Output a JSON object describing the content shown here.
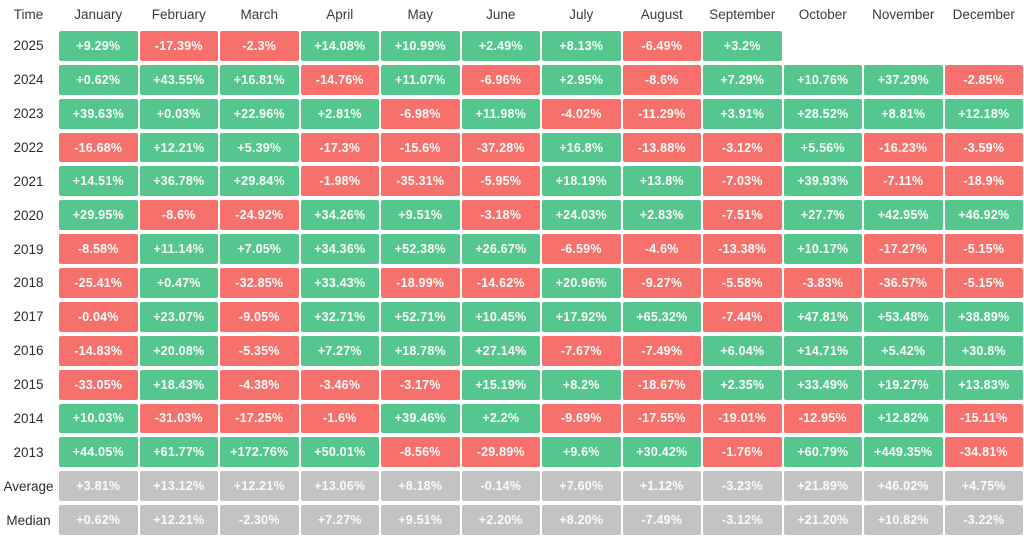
{
  "colors": {
    "positive": "#55c78e",
    "negative": "#f7716c",
    "neutral": "#c3c3c3",
    "cell_text": "#fbfbfb",
    "label_text": "#2d2d2d"
  },
  "chart_data": {
    "type": "heatmap",
    "corner_label": "Time",
    "legend_position": "none",
    "grid": false,
    "columns": [
      "January",
      "February",
      "March",
      "April",
      "May",
      "June",
      "July",
      "August",
      "September",
      "October",
      "November",
      "December"
    ],
    "rows": [
      {
        "label": "2025",
        "kind": "year",
        "values": [
          "+9.29%",
          "-17.39%",
          "-2.3%",
          "+14.08%",
          "+10.99%",
          "+2.49%",
          "+8.13%",
          "-6.49%",
          "+3.2%",
          "",
          "",
          ""
        ]
      },
      {
        "label": "2024",
        "kind": "year",
        "values": [
          "+0.62%",
          "+43.55%",
          "+16.81%",
          "-14.76%",
          "+11.07%",
          "-6.96%",
          "+2.95%",
          "-8.6%",
          "+7.29%",
          "+10.76%",
          "+37.29%",
          "-2.85%"
        ]
      },
      {
        "label": "2023",
        "kind": "year",
        "values": [
          "+39.63%",
          "+0.03%",
          "+22.96%",
          "+2.81%",
          "-6.98%",
          "+11.98%",
          "-4.02%",
          "-11.29%",
          "+3.91%",
          "+28.52%",
          "+8.81%",
          "+12.18%"
        ]
      },
      {
        "label": "2022",
        "kind": "year",
        "values": [
          "-16.68%",
          "+12.21%",
          "+5.39%",
          "-17.3%",
          "-15.6%",
          "-37.28%",
          "+16.8%",
          "-13.88%",
          "-3.12%",
          "+5.56%",
          "-16.23%",
          "-3.59%"
        ]
      },
      {
        "label": "2021",
        "kind": "year",
        "values": [
          "+14.51%",
          "+36.78%",
          "+29.84%",
          "-1.98%",
          "-35.31%",
          "-5.95%",
          "+18.19%",
          "+13.8%",
          "-7.03%",
          "+39.93%",
          "-7.11%",
          "-18.9%"
        ]
      },
      {
        "label": "2020",
        "kind": "year",
        "values": [
          "+29.95%",
          "-8.6%",
          "-24.92%",
          "+34.26%",
          "+9.51%",
          "-3.18%",
          "+24.03%",
          "+2.83%",
          "-7.51%",
          "+27.7%",
          "+42.95%",
          "+46.92%"
        ]
      },
      {
        "label": "2019",
        "kind": "year",
        "values": [
          "-8.58%",
          "+11.14%",
          "+7.05%",
          "+34.36%",
          "+52.38%",
          "+26.67%",
          "-6.59%",
          "-4.6%",
          "-13.38%",
          "+10.17%",
          "-17.27%",
          "-5.15%"
        ]
      },
      {
        "label": "2018",
        "kind": "year",
        "values": [
          "-25.41%",
          "+0.47%",
          "-32.85%",
          "+33.43%",
          "-18.99%",
          "-14.62%",
          "+20.96%",
          "-9.27%",
          "-5.58%",
          "-3.83%",
          "-36.57%",
          "-5.15%"
        ]
      },
      {
        "label": "2017",
        "kind": "year",
        "values": [
          "-0.04%",
          "+23.07%",
          "-9.05%",
          "+32.71%",
          "+52.71%",
          "+10.45%",
          "+17.92%",
          "+65.32%",
          "-7.44%",
          "+47.81%",
          "+53.48%",
          "+38.89%"
        ]
      },
      {
        "label": "2016",
        "kind": "year",
        "values": [
          "-14.83%",
          "+20.08%",
          "-5.35%",
          "+7.27%",
          "+18.78%",
          "+27.14%",
          "-7.67%",
          "-7.49%",
          "+6.04%",
          "+14.71%",
          "+5.42%",
          "+30.8%"
        ]
      },
      {
        "label": "2015",
        "kind": "year",
        "values": [
          "-33.05%",
          "+18.43%",
          "-4.38%",
          "-3.46%",
          "-3.17%",
          "+15.19%",
          "+8.2%",
          "-18.67%",
          "+2.35%",
          "+33.49%",
          "+19.27%",
          "+13.83%"
        ]
      },
      {
        "label": "2014",
        "kind": "year",
        "values": [
          "+10.03%",
          "-31.03%",
          "-17.25%",
          "-1.6%",
          "+39.46%",
          "+2.2%",
          "-9.69%",
          "-17.55%",
          "-19.01%",
          "-12.95%",
          "+12.82%",
          "-15.11%"
        ]
      },
      {
        "label": "2013",
        "kind": "year",
        "values": [
          "+44.05%",
          "+61.77%",
          "+172.76%",
          "+50.01%",
          "-8.56%",
          "-29.89%",
          "+9.6%",
          "+30.42%",
          "-1.76%",
          "+60.79%",
          "+449.35%",
          "-34.81%"
        ]
      },
      {
        "label": "Average",
        "kind": "stat",
        "values": [
          "+3.81%",
          "+13.12%",
          "+12.21%",
          "+13.06%",
          "+8.18%",
          "-0.14%",
          "+7.60%",
          "+1.12%",
          "-3.23%",
          "+21.89%",
          "+46.02%",
          "+4.75%"
        ]
      },
      {
        "label": "Median",
        "kind": "stat",
        "values": [
          "+0.62%",
          "+12.21%",
          "-2.30%",
          "+7.27%",
          "+9.51%",
          "+2.20%",
          "+8.20%",
          "-7.49%",
          "-3.12%",
          "+21.20%",
          "+10.82%",
          "-3.22%"
        ]
      }
    ]
  }
}
